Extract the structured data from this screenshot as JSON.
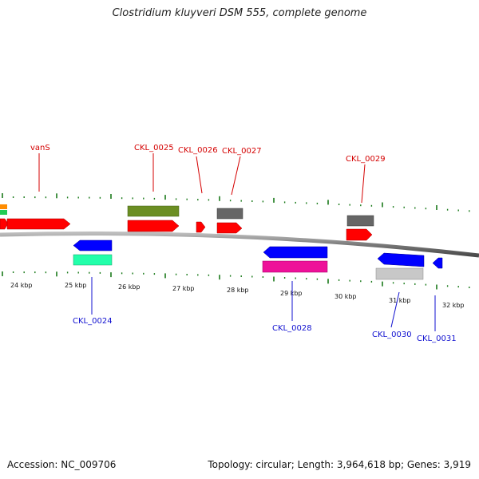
{
  "header": {
    "title": "Clostridium kluyveri DSM 555, complete genome"
  },
  "footer": {
    "accession": "Accession: NC_009706",
    "topology": "Topology: circular; Length: 3,964,618 bp; Genes: 3,919"
  },
  "axis": {
    "kbp_labels": [
      "24 kbp",
      "25 kbp",
      "26 kbp",
      "27 kbp",
      "28 kbp",
      "29 kbp",
      "30 kbp",
      "31 kbp",
      "32 kbp"
    ]
  },
  "genes": {
    "forward_labels": [
      "vanS",
      "CKL_0025",
      "CKL_0026",
      "CKL_0027",
      "CKL_0029"
    ],
    "reverse_labels": [
      "CKL_0024",
      "CKL_0028",
      "CKL_0030",
      "CKL_0031"
    ]
  },
  "colors": {
    "forward_cds": "#ff0000",
    "reverse_cds": "#0000ff",
    "forward_label": "#d40000",
    "reverse_label": "#1010d0",
    "tick": "#1a7a1a",
    "backbone": "#808080"
  }
}
